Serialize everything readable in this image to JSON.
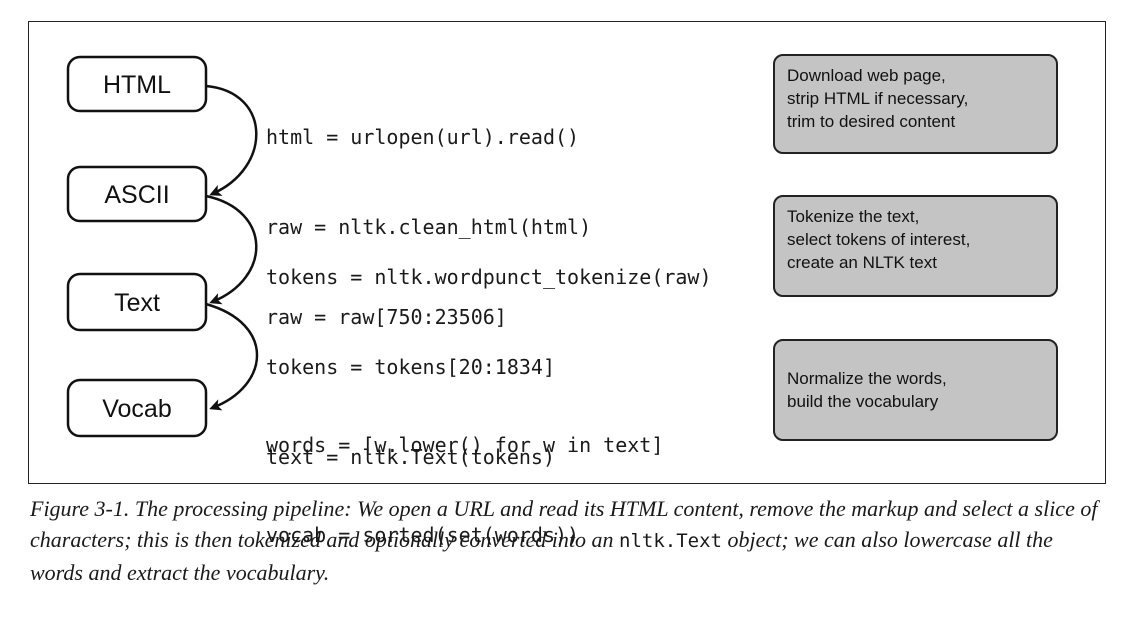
{
  "stages": [
    "HTML",
    "ASCII",
    "Text",
    "Vocab"
  ],
  "code_blocks": [
    [
      "html = urlopen(url).read()",
      "raw = nltk.clean_html(html)",
      "raw = raw[750:23506]"
    ],
    [
      "tokens = nltk.wordpunct_tokenize(raw)",
      "tokens = tokens[20:1834]",
      "text = nltk.Text(tokens)"
    ],
    [
      "words = [w.lower() for w in text]",
      "vocab = sorted(set(words))"
    ]
  ],
  "notes": [
    [
      "Download web page,",
      "strip HTML if necessary,",
      "trim to desired content"
    ],
    [
      "Tokenize the text,",
      "select tokens of interest,",
      "create an NLTK text"
    ],
    [
      "Normalize the words,",
      "build the vocabulary"
    ]
  ],
  "caption": {
    "part1": "Figure 3-1. The processing pipeline: We open a URL and read its HTML content, remove the markup and select a slice of characters; this is then tokenized and optionally converted into an ",
    "code": "nltk.Text",
    "part2": " object; we can also lowercase all the words and extract the vocabulary."
  },
  "colors": {
    "note_fill": "#c4c4c4",
    "stroke": "#222222"
  }
}
